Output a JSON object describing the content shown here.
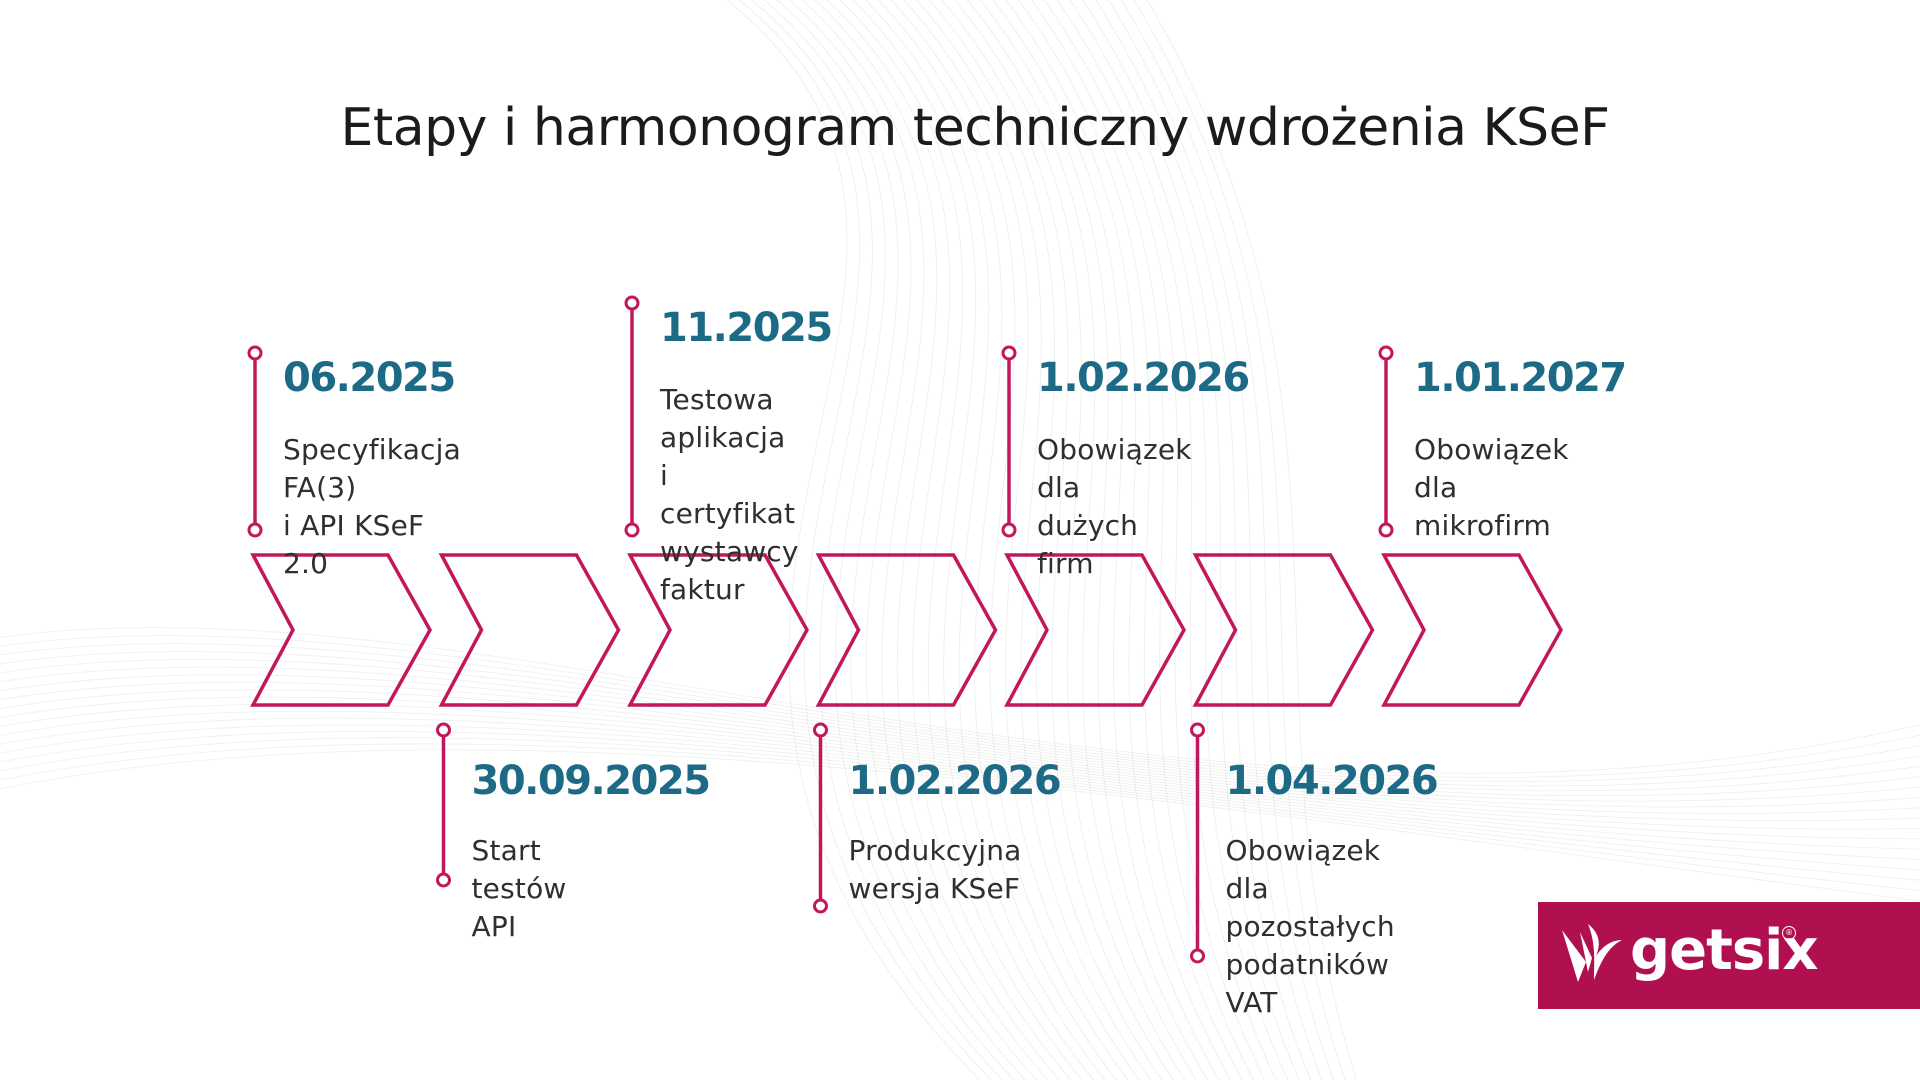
{
  "title": "Etapy i harmonogram techniczny wdrożenia KSeF",
  "colors": {
    "accent": "#c2185b",
    "date": "#1d6a86",
    "text": "#2f2f2f",
    "logo_bg": "#b0104f"
  },
  "milestones": [
    {
      "date": "06.2025",
      "description": "Specyfikacja FA(3)\ni API KSeF 2.0",
      "side": "top"
    },
    {
      "date": "30.09.2025",
      "description": "Start testów API",
      "side": "bottom"
    },
    {
      "date": "11.2025",
      "description": "Testowa aplikacja i\ncertyfikat\nwystawcy faktur",
      "side": "top"
    },
    {
      "date": "1.02.2026",
      "description": "Produkcyjna\nwersja KSeF",
      "side": "bottom"
    },
    {
      "date": "1.02.2026",
      "description": "Obowiązek dla\ndużych firm",
      "side": "top"
    },
    {
      "date": "1.04.2026",
      "description": "Obowiązek dla\npozostałych\npodatników VAT",
      "side": "bottom"
    },
    {
      "date": "1.01.2027",
      "description": "Obowiązek dla\nmikrofirm",
      "side": "top"
    }
  ],
  "logo": {
    "text": "getsix",
    "registered": "®"
  }
}
